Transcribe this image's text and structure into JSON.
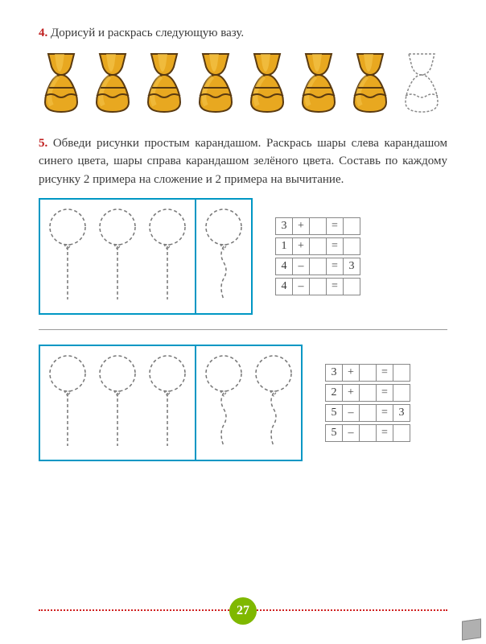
{
  "task4": {
    "num": "4.",
    "text": " Дорисуй и раскрась следующую вазу."
  },
  "task5": {
    "num": "5.",
    "text": " Обведи рисунки простым карандашом. Раскрась шары слева карандашом синего цвета, шары справа карандашом зелёного цвета. Составь по каждому рисунку 2 примера на сложение и 2 примера на вычитание."
  },
  "vases": {
    "count_filled": 7,
    "count_outline": 1,
    "body_color": "#e8a820",
    "highlight": "#f5c850",
    "outline": "#5a3a10",
    "dash": "#888"
  },
  "set1": {
    "left_balloons": 3,
    "right_balloons": 1,
    "box_color": "#0097c4",
    "dash": "#777",
    "equations": [
      [
        "3",
        "+",
        "",
        "=",
        ""
      ],
      [
        "1",
        "+",
        "",
        "=",
        ""
      ],
      [
        "4",
        "–",
        "",
        "=",
        "3"
      ],
      [
        "4",
        "–",
        "",
        "=",
        ""
      ]
    ]
  },
  "set2": {
    "left_balloons": 3,
    "right_balloons": 2,
    "box_color": "#0097c4",
    "dash": "#777",
    "equations": [
      [
        "3",
        "+",
        "",
        "=",
        ""
      ],
      [
        "2",
        "+",
        "",
        "=",
        ""
      ],
      [
        "5",
        "–",
        "",
        "=",
        "3"
      ],
      [
        "5",
        "–",
        "",
        "=",
        ""
      ]
    ]
  },
  "page_number": "27",
  "colors": {
    "task_num": "#c02020",
    "page_badge": "#7fb800",
    "dots": "#d02020"
  }
}
